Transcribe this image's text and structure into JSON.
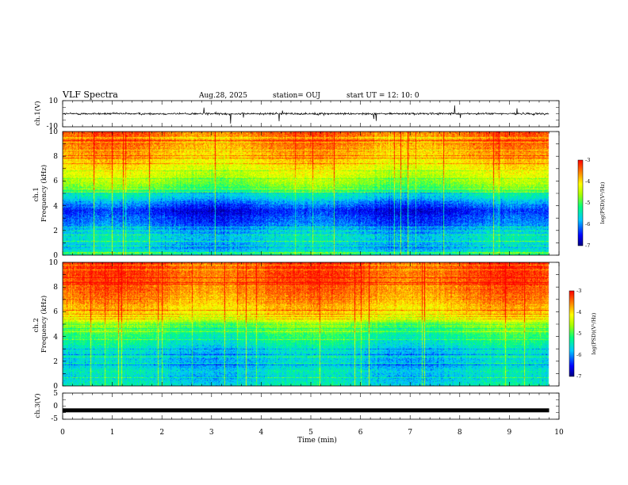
{
  "header": {
    "title": "VLF Spectra",
    "date": "Aug.28, 2025",
    "station": "station= OUJ",
    "start": "start  UT =   12: 10: 0"
  },
  "chart_data": [
    {
      "type": "line",
      "name": "ch1-waveform",
      "ylabel": "ch.1(V)",
      "ylim": [
        -10,
        10
      ],
      "yticks": [
        "10",
        "-10"
      ],
      "xlim": [
        0,
        10
      ],
      "x_end": 9.8,
      "baseline": 0,
      "noise_level": 1.3,
      "spike_level": 5
    },
    {
      "type": "heatmap",
      "name": "ch1-spectrogram",
      "ylabel": "ch.1\nFrequency  (kHz)",
      "ylim": [
        0,
        10
      ],
      "yticks": [
        "0",
        "2",
        "4",
        "6",
        "8",
        "10"
      ],
      "xlim": [
        0,
        10
      ],
      "x_end": 9.8,
      "colorbar": {
        "label": "log(PSD)(V²/Hz)",
        "range": [
          -7,
          -3
        ],
        "ticks": [
          "-3",
          "-4",
          "-5",
          "-6",
          "-7"
        ]
      },
      "frequency_profile_log_psd": [
        [
          0,
          -5.4
        ],
        [
          0.6,
          -5.9
        ],
        [
          1.2,
          -5.6
        ],
        [
          1.8,
          -5.8
        ],
        [
          2.4,
          -6.1
        ],
        [
          3.0,
          -6.3
        ],
        [
          3.6,
          -6.5
        ],
        [
          4.2,
          -6.1
        ],
        [
          4.8,
          -5.6
        ],
        [
          5.4,
          -5.0
        ],
        [
          6.0,
          -4.6
        ],
        [
          7.0,
          -4.2
        ],
        [
          8.0,
          -3.9
        ],
        [
          9.0,
          -3.6
        ],
        [
          10.0,
          -3.5
        ]
      ]
    },
    {
      "type": "heatmap",
      "name": "ch2-spectrogram",
      "ylabel": "ch.2\nFrequency  (kHz)",
      "ylim": [
        0,
        10
      ],
      "yticks": [
        "0",
        "2",
        "4",
        "6",
        "8",
        "10"
      ],
      "xlim": [
        0,
        10
      ],
      "x_end": 9.8,
      "colorbar": {
        "label": "log(PSD)(V²/Hz)",
        "range": [
          -7,
          -3
        ],
        "ticks": [
          "-3",
          "-4",
          "-5",
          "-6",
          "-7"
        ]
      },
      "frequency_profile_log_psd": [
        [
          0,
          -5.5
        ],
        [
          0.6,
          -5.7
        ],
        [
          1.2,
          -5.6
        ],
        [
          1.8,
          -5.8
        ],
        [
          2.4,
          -5.7
        ],
        [
          3.0,
          -5.6
        ],
        [
          3.6,
          -5.4
        ],
        [
          4.2,
          -5.2
        ],
        [
          4.8,
          -4.8
        ],
        [
          5.4,
          -4.4
        ],
        [
          6.0,
          -4.0
        ],
        [
          7.0,
          -3.7
        ],
        [
          8.0,
          -3.5
        ],
        [
          9.0,
          -3.4
        ],
        [
          10.0,
          -3.3
        ]
      ]
    },
    {
      "type": "line",
      "name": "ch3-signal",
      "ylabel": "ch.3(V)",
      "ylim": [
        -5,
        5
      ],
      "yticks": [
        "5",
        "0",
        "-5"
      ],
      "xlim": [
        0,
        10
      ],
      "x_end": 9.8,
      "value": -1.6
    }
  ],
  "xaxis": {
    "label": "Time  (min)",
    "ticks": [
      "0",
      "1",
      "2",
      "3",
      "4",
      "5",
      "6",
      "7",
      "8",
      "9",
      "10"
    ]
  }
}
